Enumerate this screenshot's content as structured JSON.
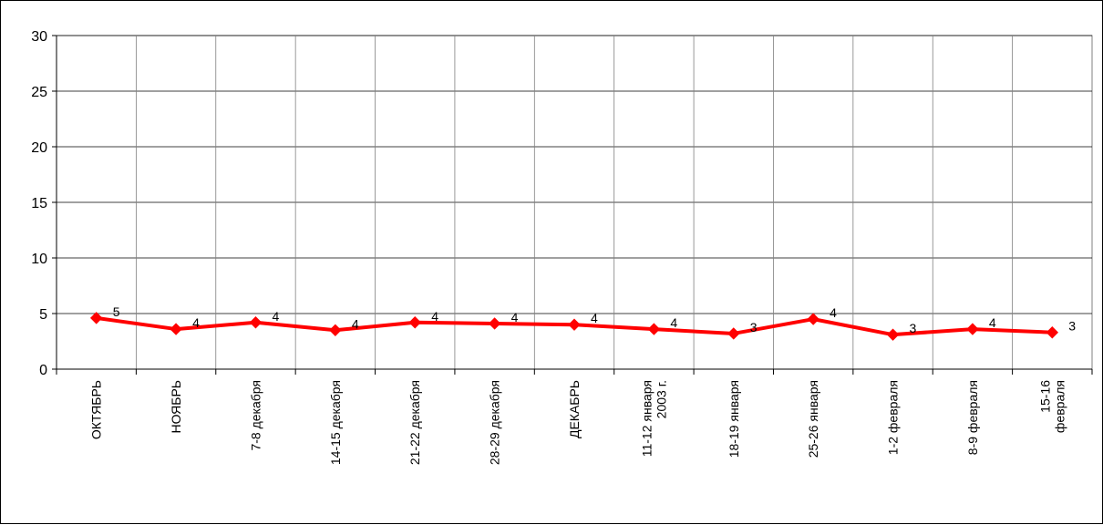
{
  "chart_data": {
    "type": "line",
    "title": "",
    "xlabel": "",
    "ylabel": "",
    "ylim": [
      0,
      30
    ],
    "yticks": [
      0,
      5,
      10,
      15,
      20,
      25,
      30
    ],
    "grid": true,
    "legend": "none",
    "categories": [
      [
        "ОКТЯБРЬ"
      ],
      [
        "НОЯБРЬ"
      ],
      [
        "7-8 декабря"
      ],
      [
        "14-15 декабря"
      ],
      [
        "21-22 декабря"
      ],
      [
        "28-29 декабря"
      ],
      [
        "ДЕКАБРЬ"
      ],
      [
        "11-12 января",
        "2003 г."
      ],
      [
        "18-19 января"
      ],
      [
        "25-26 января"
      ],
      [
        "1-2 февраля"
      ],
      [
        "8-9 февраля"
      ],
      [
        "15-16",
        "февраля"
      ]
    ],
    "series": [
      {
        "values": [
          4.6,
          3.6,
          4.2,
          3.5,
          4.2,
          4.1,
          4.0,
          3.6,
          3.2,
          4.5,
          3.1,
          3.6,
          3.3
        ],
        "data_labels": [
          "5",
          "4",
          "4",
          "4",
          "4",
          "4",
          "4",
          "4",
          "3",
          "4",
          "3",
          "4",
          "3"
        ],
        "color": "#ff0000"
      }
    ]
  }
}
